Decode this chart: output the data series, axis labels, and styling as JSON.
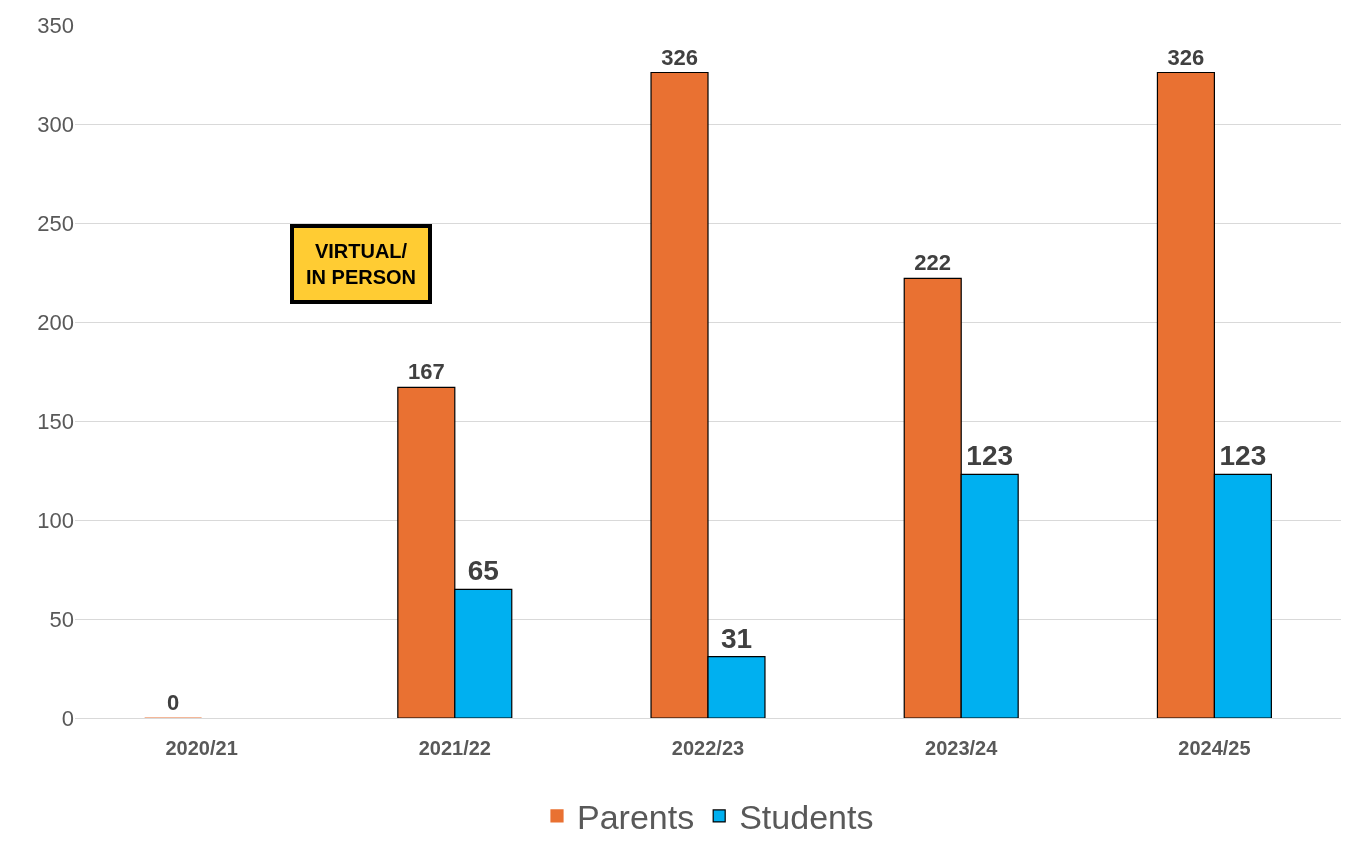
{
  "chart_data": {
    "type": "bar",
    "categories": [
      "2020/21",
      "2021/22",
      "2022/23",
      "2023/24",
      "2024/25"
    ],
    "series": [
      {
        "name": "Parents",
        "color": "#e97132",
        "values": [
          0,
          167,
          326,
          222,
          326
        ],
        "value_labels": [
          "0",
          "167",
          "326",
          "222",
          "326"
        ]
      },
      {
        "name": "Students",
        "color": "#00b0f0",
        "values": [
          null,
          65,
          31,
          123,
          123
        ],
        "value_labels": [
          null,
          "65",
          "31",
          "123",
          "123"
        ]
      }
    ],
    "ylim": [
      0,
      350
    ],
    "yticks": [
      0,
      50,
      100,
      150,
      200,
      250,
      300,
      350
    ],
    "grid": "y",
    "legend": "bottom",
    "annotations": [
      "VIRTUAL/\nIN PERSON"
    ]
  }
}
